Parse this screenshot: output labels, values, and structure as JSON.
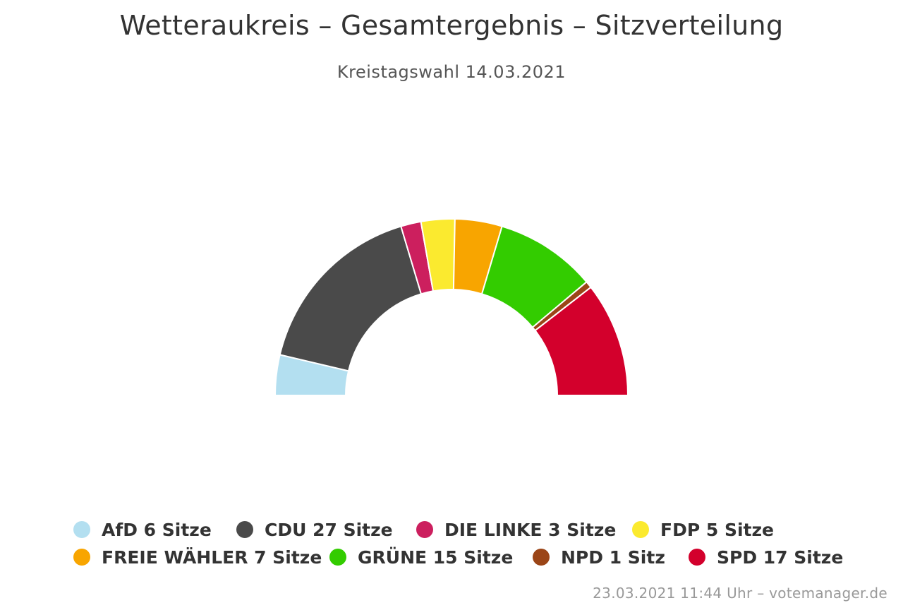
{
  "chart_data": {
    "type": "pie",
    "variant": "semicircle-parliament",
    "title": "Wetteraukreis – Gesamtergebnis – Sitzverteilung",
    "subtitle": "Kreistagswahl 14.03.2021",
    "unit": "Sitze",
    "series": [
      {
        "name": "AfD",
        "value": 6,
        "label": "AfD 6 Sitze",
        "color": "#b3dff0"
      },
      {
        "name": "CDU",
        "value": 27,
        "label": "CDU 27 Sitze",
        "color": "#4a4a4a"
      },
      {
        "name": "DIE LINKE",
        "value": 3,
        "label": "DIE LINKE 3 Sitze",
        "color": "#cc1f5e"
      },
      {
        "name": "FDP",
        "value": 5,
        "label": "FDP 5 Sitze",
        "color": "#fbea2f"
      },
      {
        "name": "FREIE WÄHLER",
        "value": 7,
        "label": "FREIE WÄHLER 7 Sitze",
        "color": "#f8a500"
      },
      {
        "name": "GRÜNE",
        "value": 15,
        "label": "GRÜNE 15 Sitze",
        "color": "#33cc00"
      },
      {
        "name": "NPD",
        "value": 1,
        "label": "NPD 1 Sitz",
        "color": "#9b4517"
      },
      {
        "name": "SPD",
        "value": 17,
        "label": "SPD 17 Sitze",
        "color": "#d3002c"
      }
    ],
    "legend": "bottom"
  },
  "credits": "23.03.2021 11:44 Uhr – votemanager.de"
}
